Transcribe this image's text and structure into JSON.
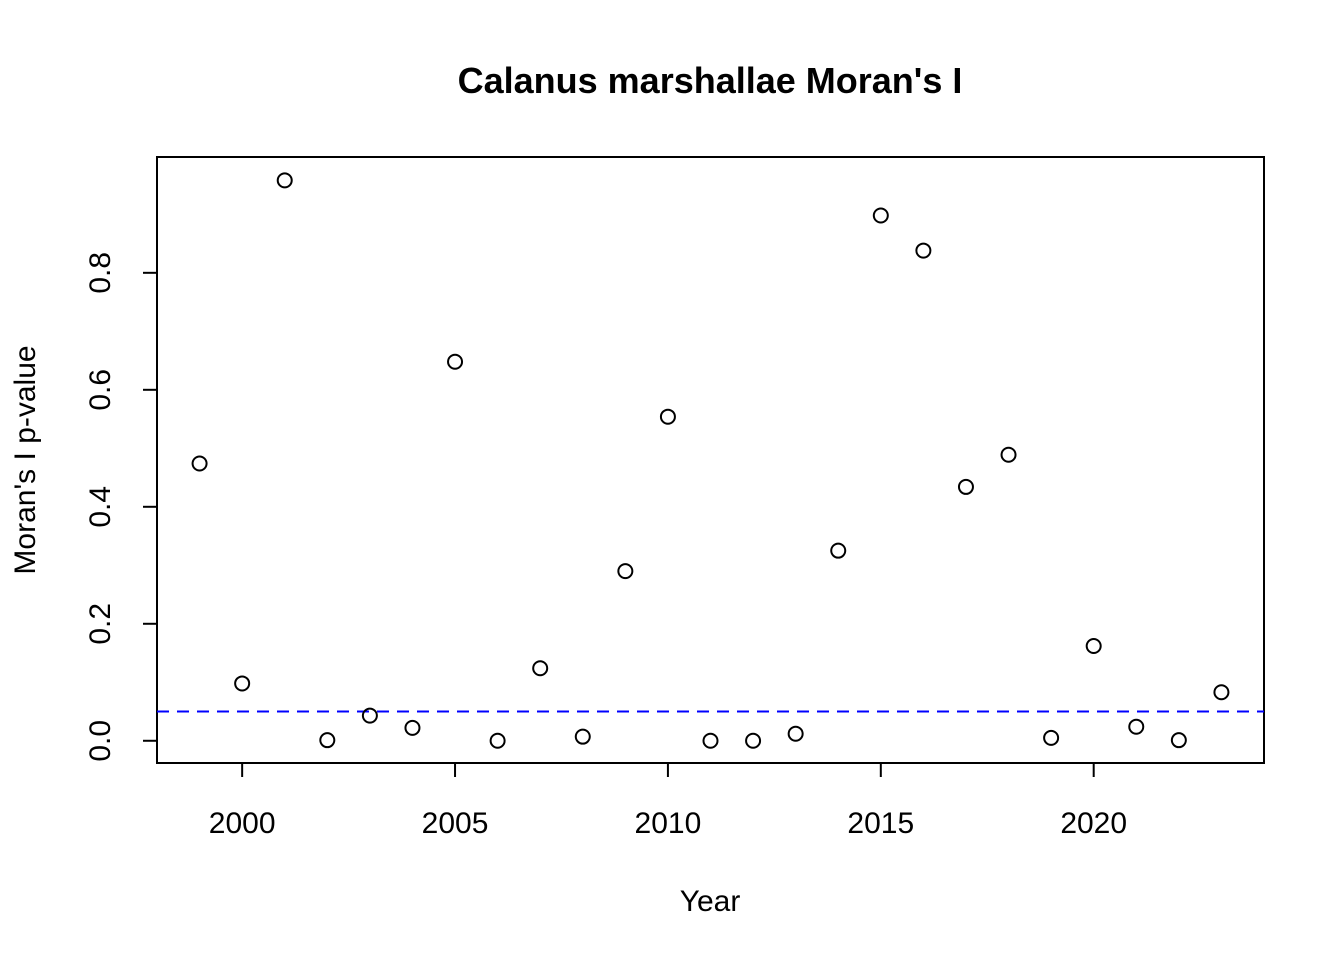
{
  "chart_data": {
    "type": "scatter",
    "title": "Calanus marshallae Moran's I",
    "xlabel": "Year",
    "ylabel": "Moran's I p-value",
    "xlim": [
      1998,
      2024
    ],
    "ylim": [
      -0.038,
      0.998
    ],
    "x_ticks": [
      2000,
      2005,
      2010,
      2015,
      2020
    ],
    "y_ticks": [
      0.0,
      0.2,
      0.4,
      0.6,
      0.8
    ],
    "y_tick_labels": [
      "0.0",
      "0.2",
      "0.4",
      "0.6",
      "0.8"
    ],
    "grid": false,
    "reference_line": {
      "y": 0.05,
      "style": "dashed",
      "color": "#0000ff"
    },
    "series": [
      {
        "x": [
          1999,
          2000,
          2001,
          2002,
          2003,
          2004,
          2005,
          2006,
          2007,
          2008,
          2009,
          2010,
          2011,
          2012,
          2013,
          2014,
          2015,
          2016,
          2017,
          2018,
          2019,
          2020,
          2021,
          2022,
          2023
        ],
        "y": [
          0.474,
          0.098,
          0.958,
          0.001,
          0.043,
          0.022,
          0.648,
          0.0,
          0.124,
          0.007,
          0.29,
          0.554,
          0.0,
          0.0,
          0.012,
          0.325,
          0.898,
          0.838,
          0.434,
          0.489,
          0.005,
          0.162,
          0.024,
          0.001,
          0.083
        ]
      }
    ]
  }
}
